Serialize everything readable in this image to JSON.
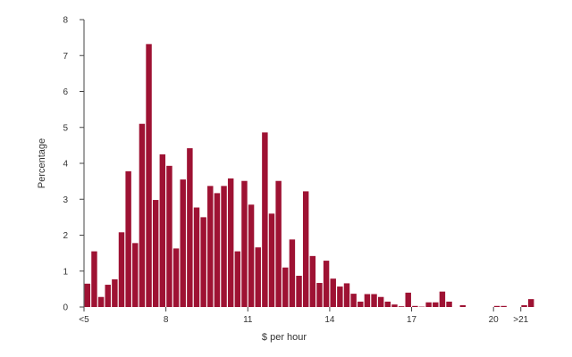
{
  "chart_data": {
    "type": "bar",
    "title": "",
    "xlabel": "$ per hour",
    "ylabel": "Percentage",
    "ylim": [
      0,
      8
    ],
    "yticks": [
      0,
      1,
      2,
      3,
      4,
      5,
      6,
      7,
      8
    ],
    "xtick_labels": [
      {
        "label": "<5",
        "at": 0
      },
      {
        "label": "8",
        "at": 12
      },
      {
        "label": "11",
        "at": 24
      },
      {
        "label": "14",
        "at": 36
      },
      {
        "label": "17",
        "at": 48
      },
      {
        "label": "20",
        "at": 60
      },
      {
        "label": ">21",
        "at": 64
      }
    ],
    "bar_color": "#9e1233",
    "grid": false,
    "values": [
      0.65,
      1.55,
      0.28,
      0.62,
      0.77,
      2.08,
      3.78,
      1.78,
      5.1,
      7.32,
      2.98,
      4.25,
      3.93,
      1.63,
      3.55,
      4.42,
      2.77,
      2.5,
      3.37,
      3.17,
      3.37,
      3.58,
      1.55,
      3.51,
      2.85,
      1.66,
      4.86,
      2.6,
      3.51,
      1.1,
      1.88,
      0.87,
      3.22,
      1.42,
      0.67,
      1.29,
      0.79,
      0.57,
      0.66,
      0.37,
      0.15,
      0.36,
      0.36,
      0.28,
      0.15,
      0.07,
      0.02,
      0.4,
      0.03,
      0.01,
      0.13,
      0.13,
      0.43,
      0.15,
      0.0,
      0.05,
      0.0,
      0.0,
      0.0,
      0.0,
      0.03,
      0.03,
      0.0,
      0.0,
      0.05,
      0.22
    ]
  }
}
